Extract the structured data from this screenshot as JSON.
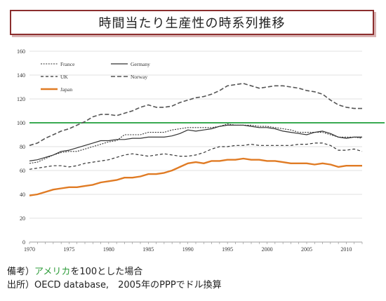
{
  "title": "時間当たり生産性の時系列推移",
  "notes": {
    "line1_prefix": "備考）",
    "line1_highlight": "アメリカ",
    "line1_suffix": "を100とした場合",
    "line2": "出所）OECD database,　2005年のPPPでドル換算"
  },
  "colors": {
    "japan": "#e07b24",
    "reference": "#1e9e3a",
    "lines": "#333333",
    "grid": "#d8d8d8",
    "frame_title": "#8b2e2e"
  },
  "chart_data": {
    "type": "line",
    "xlim": [
      1970,
      2012
    ],
    "ylim": [
      0,
      160
    ],
    "xticks": [
      1970,
      1975,
      1980,
      1985,
      1990,
      1995,
      2000,
      2005,
      2010
    ],
    "yticks": [
      0,
      20,
      40,
      60,
      80,
      100,
      120,
      140,
      160
    ],
    "grid": true,
    "legend_position": "top-left",
    "reference_line": 100,
    "series": [
      {
        "name": "France",
        "style": "dotted",
        "x": [
          1970,
          1971,
          1972,
          1973,
          1974,
          1975,
          1976,
          1977,
          1978,
          1979,
          1980,
          1981,
          1982,
          1983,
          1984,
          1985,
          1986,
          1987,
          1988,
          1989,
          1990,
          1991,
          1992,
          1993,
          1994,
          1995,
          1996,
          1997,
          1998,
          1999,
          2000,
          2001,
          2002,
          2003,
          2004,
          2005,
          2006,
          2007,
          2008,
          2009,
          2010,
          2011,
          2012
        ],
        "values": [
          66,
          67,
          70,
          73,
          75,
          76,
          76,
          78,
          80,
          82,
          84,
          85,
          90,
          90,
          90,
          92,
          92,
          92,
          94,
          95,
          96,
          96,
          96,
          96,
          97,
          99,
          98,
          98,
          98,
          97,
          97,
          96,
          95,
          94,
          92,
          92,
          92,
          92,
          90,
          88,
          88,
          88,
          87
        ]
      },
      {
        "name": "Germany",
        "style": "solid",
        "x": [
          1970,
          1971,
          1972,
          1973,
          1974,
          1975,
          1976,
          1977,
          1978,
          1979,
          1980,
          1981,
          1982,
          1983,
          1984,
          1985,
          1986,
          1987,
          1988,
          1989,
          1990,
          1991,
          1992,
          1993,
          1994,
          1995,
          1996,
          1997,
          1998,
          1999,
          2000,
          2001,
          2002,
          2003,
          2004,
          2005,
          2006,
          2007,
          2008,
          2009,
          2010,
          2011,
          2012
        ],
        "values": [
          68,
          69,
          71,
          73,
          76,
          77,
          79,
          81,
          83,
          85,
          85,
          86,
          86,
          87,
          87,
          88,
          88,
          88,
          89,
          91,
          94,
          93,
          94,
          95,
          97,
          98,
          98,
          98,
          97,
          96,
          96,
          95,
          93,
          92,
          91,
          90,
          92,
          93,
          91,
          88,
          87,
          88,
          88
        ]
      },
      {
        "name": "UK",
        "style": "dashed",
        "x": [
          1970,
          1971,
          1972,
          1973,
          1974,
          1975,
          1976,
          1977,
          1978,
          1979,
          1980,
          1981,
          1982,
          1983,
          1984,
          1985,
          1986,
          1987,
          1988,
          1989,
          1990,
          1991,
          1992,
          1993,
          1994,
          1995,
          1996,
          1997,
          1998,
          1999,
          2000,
          2001,
          2002,
          2003,
          2004,
          2005,
          2006,
          2007,
          2008,
          2009,
          2010,
          2011,
          2012
        ],
        "values": [
          61,
          62,
          63,
          64,
          64,
          63,
          64,
          66,
          67,
          68,
          69,
          71,
          73,
          74,
          73,
          72,
          73,
          74,
          73,
          72,
          72,
          73,
          75,
          78,
          80,
          80,
          81,
          81,
          82,
          81,
          81,
          81,
          81,
          81,
          82,
          82,
          83,
          83,
          81,
          77,
          77,
          78,
          76
        ]
      },
      {
        "name": "Norway",
        "style": "long-dashed",
        "x": [
          1970,
          1971,
          1972,
          1973,
          1974,
          1975,
          1976,
          1977,
          1978,
          1979,
          1980,
          1981,
          1982,
          1983,
          1984,
          1985,
          1986,
          1987,
          1988,
          1989,
          1990,
          1991,
          1992,
          1993,
          1994,
          1995,
          1996,
          1997,
          1998,
          1999,
          2000,
          2001,
          2002,
          2003,
          2004,
          2005,
          2006,
          2007,
          2008,
          2009,
          2010,
          2011,
          2012
        ],
        "values": [
          81,
          83,
          87,
          90,
          93,
          95,
          98,
          101,
          105,
          107,
          107,
          106,
          108,
          110,
          113,
          115,
          113,
          113,
          114,
          117,
          119,
          121,
          122,
          124,
          127,
          131,
          132,
          133,
          131,
          129,
          130,
          131,
          131,
          130,
          129,
          127,
          126,
          124,
          119,
          115,
          113,
          112,
          112
        ]
      },
      {
        "name": "Japan",
        "style": "solid-thick",
        "x": [
          1970,
          1971,
          1972,
          1973,
          1974,
          1975,
          1976,
          1977,
          1978,
          1979,
          1980,
          1981,
          1982,
          1983,
          1984,
          1985,
          1986,
          1987,
          1988,
          1989,
          1990,
          1991,
          1992,
          1993,
          1994,
          1995,
          1996,
          1997,
          1998,
          1999,
          2000,
          2001,
          2002,
          2003,
          2004,
          2005,
          2006,
          2007,
          2008,
          2009,
          2010,
          2011,
          2012
        ],
        "values": [
          39,
          40,
          42,
          44,
          45,
          46,
          46,
          47,
          48,
          50,
          51,
          52,
          54,
          54,
          55,
          57,
          57,
          58,
          60,
          63,
          66,
          67,
          66,
          68,
          68,
          69,
          69,
          70,
          69,
          69,
          68,
          68,
          67,
          66,
          66,
          66,
          65,
          66,
          65,
          63,
          64,
          64,
          64
        ]
      }
    ]
  }
}
